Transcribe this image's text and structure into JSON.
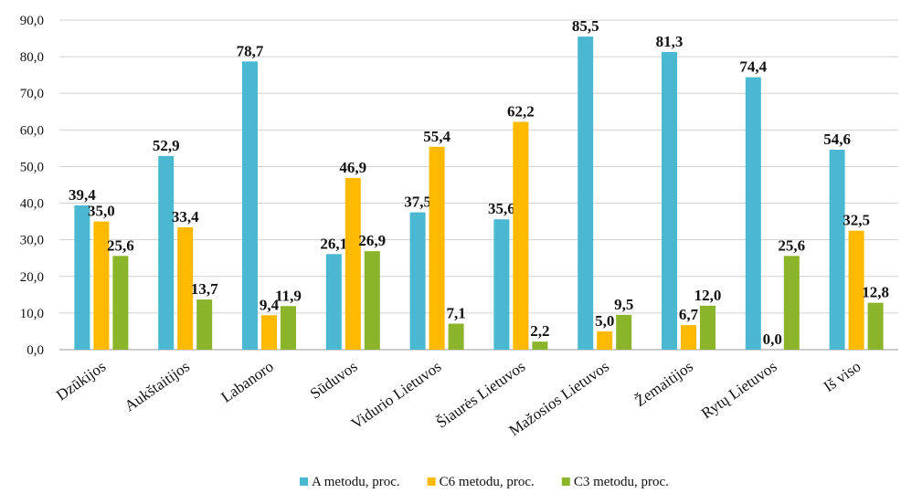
{
  "chart_data": {
    "type": "bar",
    "categories": [
      "Dzūkijos",
      "Aukštaitijos",
      "Labanoro",
      "Sūduvos",
      "Vidurio Lietuvos",
      "Šiaurės Lietuvos",
      "Mažosios Lietuvos",
      "Žemaitijos",
      "Rytų Lietuvos",
      "Iš viso"
    ],
    "series": [
      {
        "name": "A metodu, proc.",
        "color": "#4ab8d0",
        "values": [
          39.4,
          52.9,
          78.7,
          26.1,
          37.5,
          35.6,
          85.5,
          81.3,
          74.4,
          54.6
        ],
        "labels": [
          "39,4",
          "52,9",
          "78,7",
          "26,1",
          "37,5",
          "35,6",
          "85,5",
          "81,3",
          "74,4",
          "54,6"
        ]
      },
      {
        "name": "C6 metodu, proc.",
        "color": "#ffb900",
        "values": [
          35.0,
          33.4,
          9.4,
          46.9,
          55.4,
          62.2,
          5.0,
          6.7,
          0.0,
          32.5
        ],
        "labels": [
          "35,0",
          "33,4",
          "9,4",
          "46,9",
          "55,4",
          "62,2",
          "5,0",
          "6,7",
          "0,0",
          "32,5"
        ]
      },
      {
        "name": "C3 metodu, proc.",
        "color": "#8cb42a",
        "values": [
          25.6,
          13.7,
          11.9,
          26.9,
          7.1,
          2.2,
          9.5,
          12.0,
          25.6,
          12.8
        ],
        "labels": [
          "25,6",
          "13,7",
          "11,9",
          "26,9",
          "7,1",
          "2,2",
          "9,5",
          "12,0",
          "25,6",
          "12,8"
        ]
      }
    ],
    "y_ticks": [
      "0,0",
      "10,0",
      "20,0",
      "30,0",
      "40,0",
      "50,0",
      "60,0",
      "70,0",
      "80,0",
      "90,0"
    ],
    "ylim": [
      0,
      90
    ],
    "grid": true,
    "legend_position": "bottom"
  }
}
